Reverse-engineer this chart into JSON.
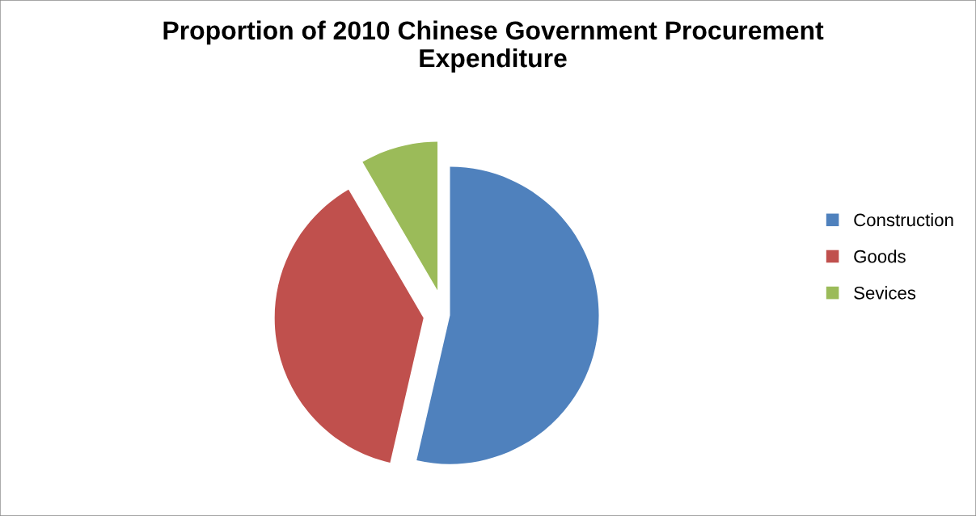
{
  "chart_data": {
    "type": "pie",
    "title": "Proportion of 2010 Chinese Government Procurement Expenditure",
    "categories": [
      "Construction",
      "Goods",
      "Sevices"
    ],
    "values": [
      53.6,
      38,
      8.4
    ],
    "colors": [
      "#4f81bd",
      "#c0504d",
      "#9bbb59"
    ],
    "legend": "right"
  }
}
